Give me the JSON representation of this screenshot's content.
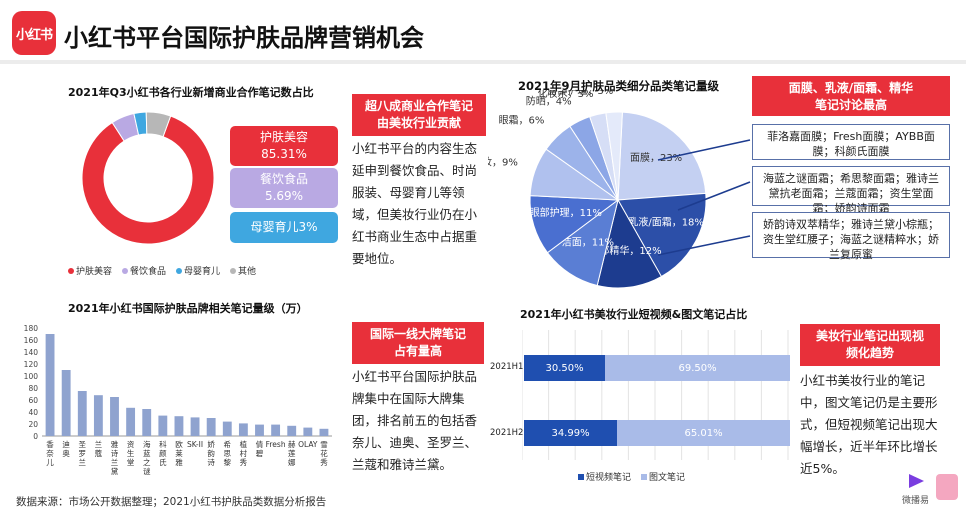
{
  "header": {
    "logo_text": "小红书",
    "title": "小红书平台国际护肤品牌营销机会"
  },
  "donut_section": {
    "title": "2021年Q3小红书各行业新增商业合作笔记数占比",
    "labels": [
      {
        "name": "护肤美容",
        "value": "85.31%"
      },
      {
        "name": "餐饮食品",
        "value": "5.69%"
      },
      {
        "name": "母婴育儿3%"
      }
    ],
    "legend": [
      "护肤美容",
      "餐饮食品",
      "母婴育儿",
      "其他"
    ]
  },
  "donut_callout": {
    "title": "超八成商业合作笔记\n由美妆行业贡献",
    "body": "小红书平台的内容生态延申到餐饮食品、时尚服装、母婴育儿等领域，但美妆行业仍在小红书商业生态中占据重要地位。"
  },
  "pie_section": {
    "title": "2021年9月护肤品类细分品类笔记量级",
    "callout_title": "面膜、乳液/面霜、精华\n笔记讨论最高",
    "notes": [
      "菲洛嘉面膜；Fresh面膜；AYBB面膜；科颜氏面膜",
      "海蓝之谜面霜；希思黎面霜；雅诗兰黛抗老面霜；兰蔻面霜；资生堂面霜；娇韵诗面霜",
      "娇韵诗双萃精华；雅诗兰黛小棕瓶；资生堂红腰子；海蓝之谜精粹水；娇兰复原蜜"
    ]
  },
  "bar_section": {
    "title": "2021年小红书国际护肤品牌相关笔记量级（万）",
    "callout_title": "国际一线大牌笔记\n占有量高",
    "body": "小红书平台国际护肤品牌集中在国际大牌集团，排名前五的包括香奈儿、迪奥、圣罗兰、兰蔻和雅诗兰黛。"
  },
  "stack_section": {
    "title": "2021年小红书美妆行业短视频&图文笔记占比",
    "callout_title": "美妆行业笔记出现视\n频化趋势",
    "body": "小红书美妆行业的笔记中，图文笔记仍是主要形式，但短视频笔记出现大幅增长，近半年环比增长近5%。",
    "legend": [
      "短视频笔记",
      "图文笔记"
    ]
  },
  "footer": {
    "source": "数据来源：市场公开数据整理；2021小红书护肤品类数据分析报告",
    "brand": "微播易"
  },
  "colors": {
    "red": "#e8303a",
    "purple": "#b9a9e3",
    "blue_light": "#3fa7e0",
    "pie_dark": "#1d3c8f",
    "bar": "#8fa3cf",
    "video": "#1f4fb0",
    "image": "#a9bbe8"
  },
  "chart_data": [
    {
      "type": "pie",
      "title": "2021年Q3小红书各行业新增商业合作笔记数占比",
      "categories": [
        "护肤美容",
        "餐饮食品",
        "母婴育儿",
        "其他"
      ],
      "values": [
        85.31,
        5.69,
        3,
        6
      ]
    },
    {
      "type": "pie",
      "title": "2021年9月护肤品类细分品类笔记量级",
      "categories": [
        "面膜",
        "乳液/面霜",
        "面部精华",
        "洁面",
        "眼部护理",
        "卸妆",
        "眼霜",
        "防晒",
        "化妆水",
        "唇部护理"
      ],
      "values": [
        23,
        18,
        12,
        11,
        11,
        9,
        6,
        4,
        3,
        3
      ],
      "value_labels": [
        "面膜，23%",
        "乳液/面霜，18%",
        "面部精华，12%",
        "洁面，11%",
        "眼部护理，11%",
        "卸妆，9%",
        "眼霜，6%",
        "防晒，4%",
        "化妆水，3%",
        "唇部护理，3%"
      ]
    },
    {
      "type": "bar",
      "title": "2021年小红书国际护肤品牌相关笔记量级（万）",
      "categories": [
        "香奈儿",
        "迪奥",
        "圣罗兰",
        "兰蔻",
        "雅诗兰黛",
        "资生堂",
        "海蓝之谜",
        "科颜氏",
        "欧莱雅",
        "SK-II",
        "娇韵诗",
        "希思黎",
        "植村秀",
        "倩碧",
        "Fresh",
        "赫莲娜",
        "OLAY",
        "雪花秀"
      ],
      "values": [
        170,
        110,
        75,
        68,
        65,
        47,
        45,
        34,
        33,
        31,
        30,
        24,
        21,
        19,
        19,
        17,
        14,
        12
      ],
      "ylim": [
        0,
        180
      ],
      "yticks": [
        0,
        20,
        40,
        60,
        80,
        100,
        120,
        140,
        160,
        180
      ]
    },
    {
      "type": "bar",
      "title": "2021年小红书美妆行业短视频&图文笔记占比",
      "categories": [
        "2021H1",
        "2021H2"
      ],
      "series": [
        {
          "name": "短视频笔记",
          "values": [
            30.5,
            34.99
          ]
        },
        {
          "name": "图文笔记",
          "values": [
            69.5,
            65.01
          ]
        }
      ],
      "value_labels": [
        [
          "30.50%",
          "69.50%"
        ],
        [
          "34.99%",
          "65.01%"
        ]
      ]
    }
  ]
}
